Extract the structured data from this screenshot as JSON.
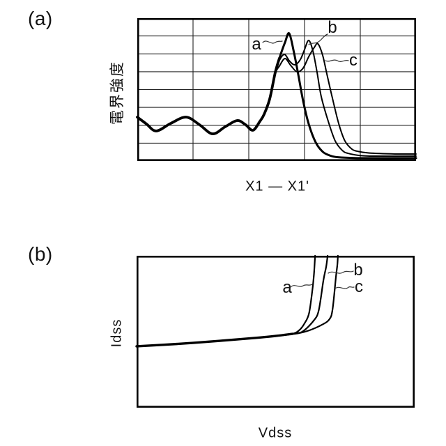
{
  "page": {
    "background": "#ffffff",
    "ink": "#000000"
  },
  "panels": [
    {
      "id": "panel-a",
      "tag": "(a)",
      "y_axis_label": "電界強度",
      "x_axis_label": "X1 — X1'",
      "curve_labels": {
        "a": "a",
        "b": "b",
        "c": "c"
      }
    },
    {
      "id": "panel-b",
      "tag": "(b)",
      "y_axis_label": "Idss",
      "x_axis_label": "Vdss",
      "curve_labels": {
        "a": "a",
        "b": "b",
        "c": "c"
      }
    }
  ],
  "chart_data": [
    {
      "id": "panel-a",
      "type": "line",
      "title": "",
      "xlabel": "X1 — X1'",
      "ylabel": "電界強度",
      "axes_note": "qualitative axes, no tick values; x is position along section X1–X1', y is electric field strength; values below are normalized 0–100",
      "grid": {
        "on": true,
        "columns": 5,
        "rows": 8
      },
      "legend": "none (curves annotated a, b, c with wavy leader lines)",
      "xlim": [
        0,
        100
      ],
      "ylim": [
        0,
        100
      ],
      "series": [
        {
          "name": "a",
          "points": [
            [
              0,
              30.7
            ],
            [
              3.3,
              25.9
            ],
            [
              6.8,
              21
            ],
            [
              12,
              26.3
            ],
            [
              17.5,
              30.7
            ],
            [
              22.3,
              25.4
            ],
            [
              27,
              19
            ],
            [
              31.5,
              23.9
            ],
            [
              35.8,
              28.3
            ],
            [
              38.8,
              25.4
            ],
            [
              41.5,
              21.5
            ],
            [
              44,
              27.8
            ],
            [
              45.5,
              32.7
            ],
            [
              47.5,
              43.4
            ],
            [
              49.5,
              62
            ],
            [
              51,
              72
            ],
            [
              53,
              83
            ],
            [
              54.5,
              89.3
            ],
            [
              56.2,
              76
            ],
            [
              57.8,
              60
            ],
            [
              59.5,
              42
            ],
            [
              61.5,
              25.9
            ],
            [
              64,
              13
            ],
            [
              66.5,
              6.5
            ],
            [
              69,
              3.9
            ],
            [
              72,
              2.6
            ],
            [
              80,
              2
            ],
            [
              100,
              2
            ]
          ]
        },
        {
          "name": "b",
          "points": [
            [
              0,
              30.7
            ],
            [
              3.3,
              25.9
            ],
            [
              6.8,
              21
            ],
            [
              12,
              26.3
            ],
            [
              17.5,
              30.7
            ],
            [
              22.3,
              25.4
            ],
            [
              27,
              19
            ],
            [
              31.5,
              23.9
            ],
            [
              35.8,
              28.3
            ],
            [
              38.8,
              25.4
            ],
            [
              41.5,
              21.5
            ],
            [
              44,
              27.8
            ],
            [
              45.5,
              32.7
            ],
            [
              47.5,
              43.4
            ],
            [
              49.5,
              62
            ],
            [
              51,
              70.5
            ],
            [
              52.8,
              74.6
            ],
            [
              54.6,
              70
            ],
            [
              56.5,
              67.3
            ],
            [
              58.5,
              71
            ],
            [
              60,
              78
            ],
            [
              61.5,
              84.4
            ],
            [
              63,
              77
            ],
            [
              64.5,
              62
            ],
            [
              66,
              45
            ],
            [
              68.5,
              27.8
            ],
            [
              71,
              14
            ],
            [
              73.5,
              7.5
            ],
            [
              75.5,
              5.4
            ],
            [
              80,
              3.8
            ],
            [
              85,
              3.4
            ],
            [
              100,
              3.4
            ]
          ]
        },
        {
          "name": "c",
          "points": [
            [
              0,
              30.7
            ],
            [
              3.3,
              25.9
            ],
            [
              6.8,
              21
            ],
            [
              12,
              26.3
            ],
            [
              17.5,
              30.7
            ],
            [
              22.3,
              25.4
            ],
            [
              27,
              19
            ],
            [
              31.5,
              23.9
            ],
            [
              35.8,
              28.3
            ],
            [
              38.8,
              25.4
            ],
            [
              41.5,
              21.5
            ],
            [
              44,
              27.8
            ],
            [
              45.5,
              32.7
            ],
            [
              47.5,
              43.4
            ],
            [
              49.5,
              61
            ],
            [
              51,
              66.5
            ],
            [
              53,
              71.7
            ],
            [
              55,
              67
            ],
            [
              57.3,
              62.4
            ],
            [
              59.5,
              65
            ],
            [
              61.5,
              73
            ],
            [
              63.5,
              79.5
            ],
            [
              64.8,
              82
            ],
            [
              66.5,
              74
            ],
            [
              68,
              61
            ],
            [
              70,
              44
            ],
            [
              72.3,
              25.9
            ],
            [
              74.5,
              14
            ],
            [
              77,
              8.3
            ],
            [
              79,
              6.8
            ],
            [
              83,
              5.6
            ],
            [
              92.5,
              4.9
            ],
            [
              100,
              4.9
            ]
          ]
        }
      ]
    },
    {
      "id": "panel-b",
      "type": "line",
      "title": "",
      "xlabel": "Vdss",
      "ylabel": "Idss",
      "axes_note": "qualitative axes, no tick values; breakdown I–V curves; values below are normalized 0–100",
      "grid": {
        "on": false,
        "columns": 0,
        "rows": 0
      },
      "legend": "none (curves annotated a, b, c with wavy leader lines)",
      "xlim": [
        0,
        100
      ],
      "ylim": [
        0,
        100
      ],
      "series": [
        {
          "name": "a",
          "points": [
            [
              0,
              40.4
            ],
            [
              15,
              42
            ],
            [
              30,
              44
            ],
            [
              42.6,
              45.9
            ],
            [
              50,
              47.2
            ],
            [
              56,
              48.6
            ],
            [
              58.5,
              51
            ],
            [
              60.4,
              55.5
            ],
            [
              62,
              62
            ],
            [
              63.2,
              77.1
            ],
            [
              63.8,
              88
            ],
            [
              64.2,
              100
            ]
          ]
        },
        {
          "name": "b",
          "points": [
            [
              0,
              40.4
            ],
            [
              15,
              42
            ],
            [
              30,
              44
            ],
            [
              42.6,
              45.9
            ],
            [
              50,
              47.2
            ],
            [
              57,
              48.8
            ],
            [
              60,
              50.5
            ],
            [
              63.7,
              57.3
            ],
            [
              65.5,
              64
            ],
            [
              67.2,
              83.9
            ],
            [
              68.2,
              93
            ],
            [
              68.7,
              100
            ]
          ]
        },
        {
          "name": "c",
          "points": [
            [
              0,
              40.4
            ],
            [
              15,
              42
            ],
            [
              30,
              44
            ],
            [
              42.6,
              45.9
            ],
            [
              50,
              47.2
            ],
            [
              58,
              48.9
            ],
            [
              62,
              50.8
            ],
            [
              66.7,
              54.6
            ],
            [
              69.4,
              58.3
            ],
            [
              70.5,
              65
            ],
            [
              71.7,
              86.2
            ],
            [
              72.2,
              94
            ],
            [
              72.4,
              100
            ]
          ]
        }
      ]
    }
  ]
}
